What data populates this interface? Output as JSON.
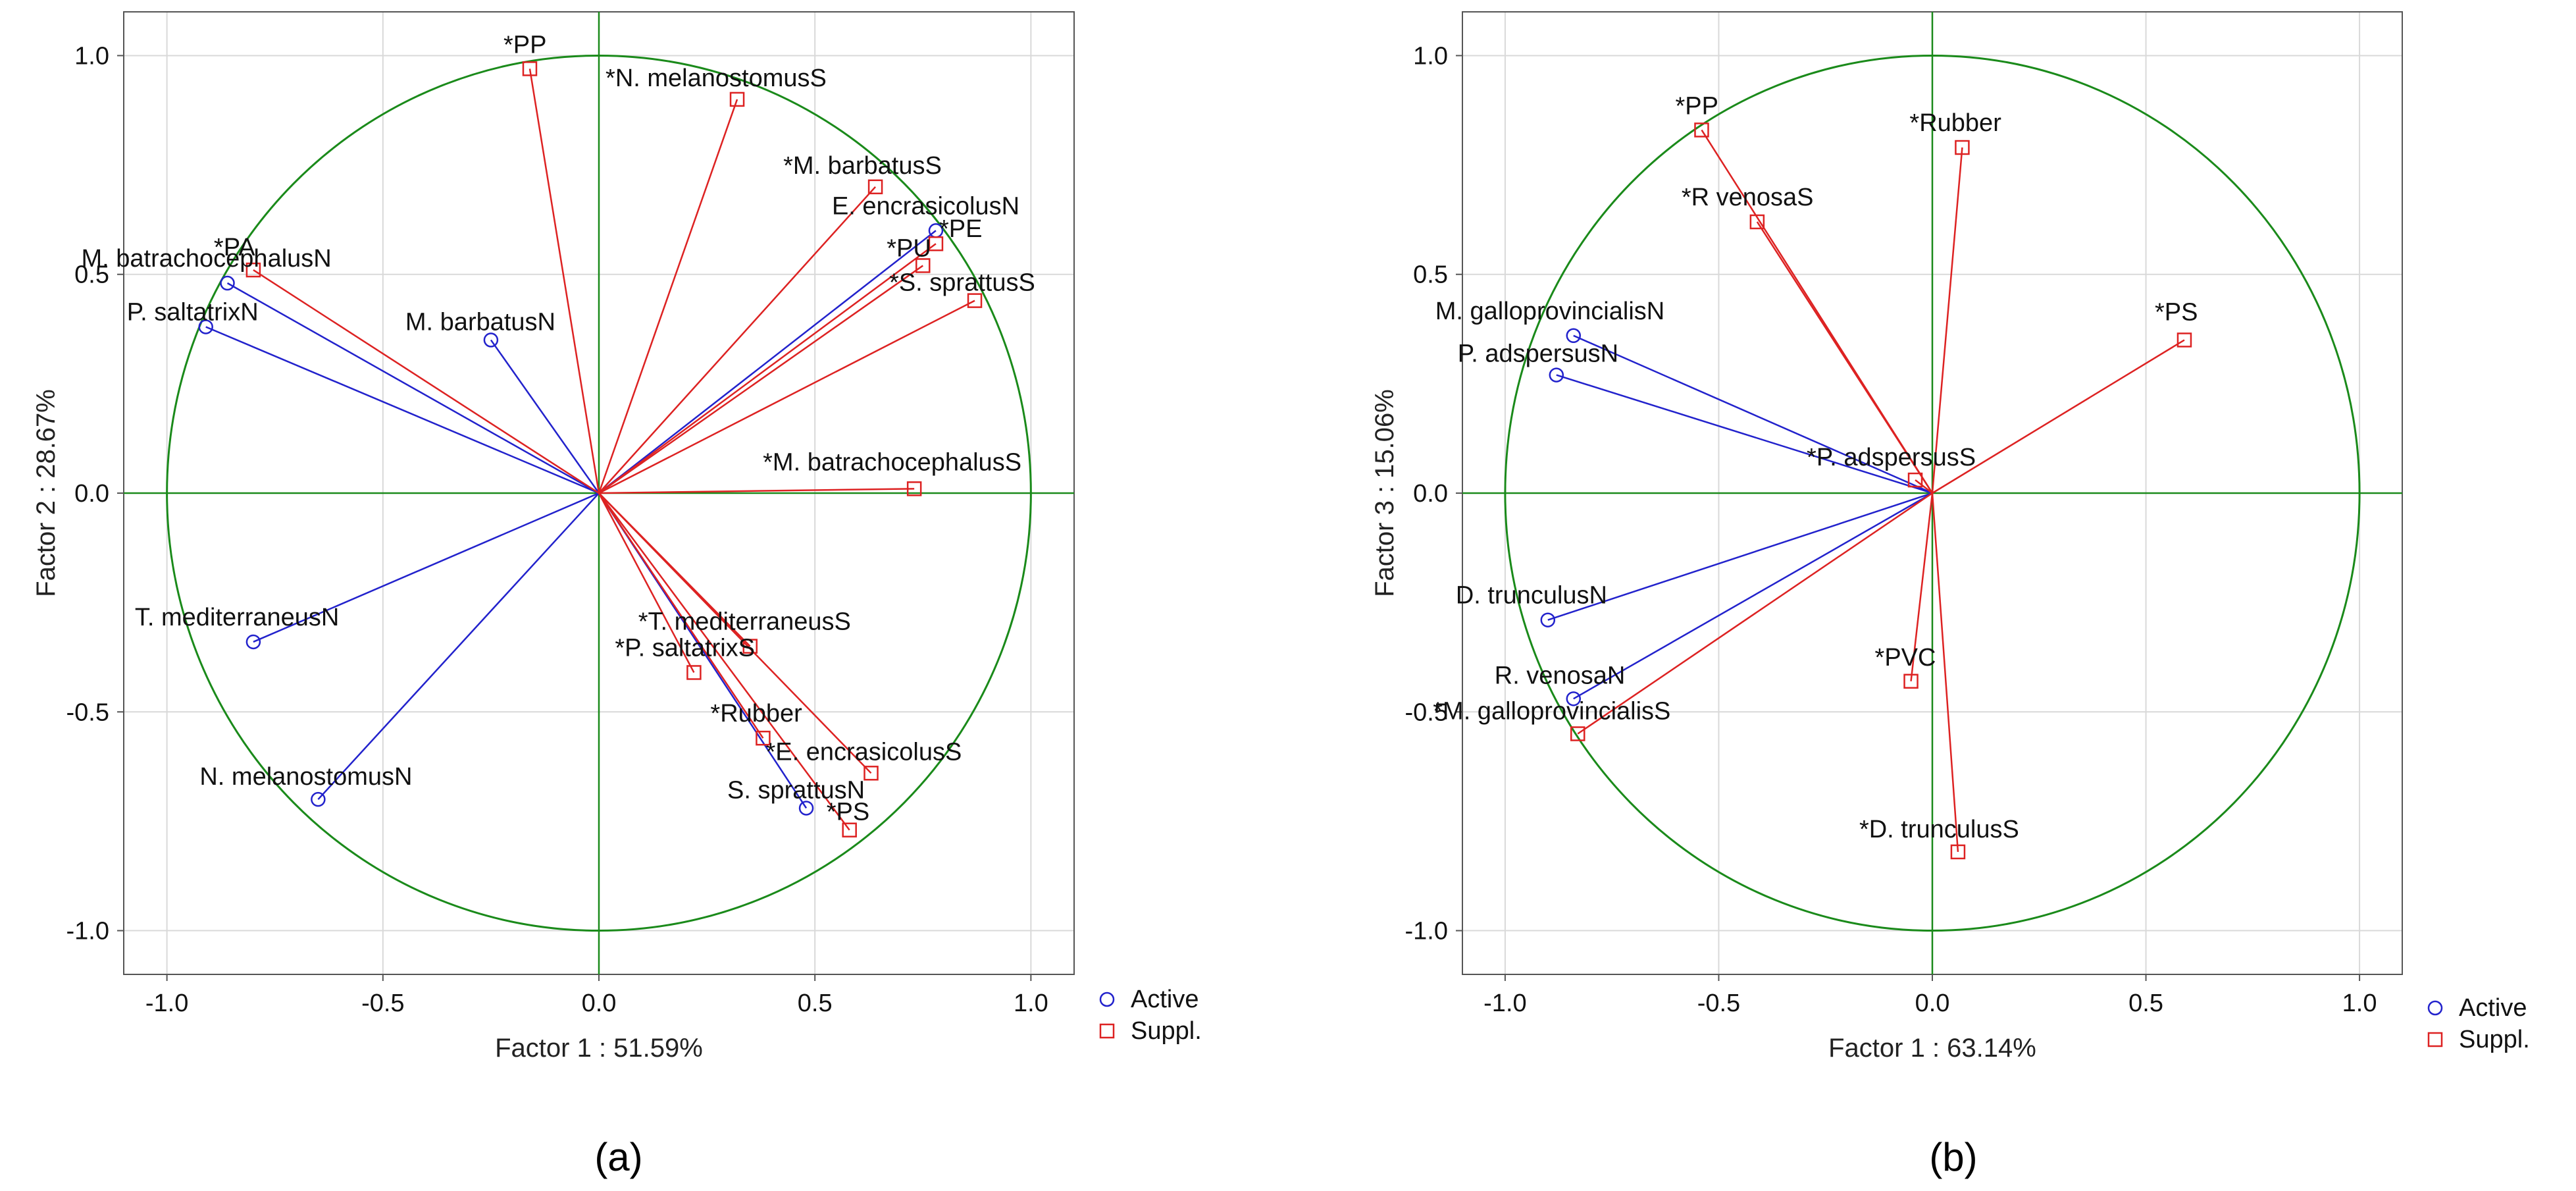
{
  "chart_data": [
    {
      "type": "scatter",
      "panel_label": "(a)",
      "xlabel": "Factor 1 : 51.59%",
      "ylabel": "Factor 2 : 28.67%",
      "xlim": [
        -1.1,
        1.1
      ],
      "ylim": [
        -1.1,
        1.1
      ],
      "xticks": [
        -1.0,
        -0.5,
        0.0,
        0.5,
        1.0
      ],
      "yticks": [
        -1.0,
        -0.5,
        0.0,
        0.5,
        1.0
      ],
      "xtick_labels": [
        "-1.0",
        "-0.5",
        "0.0",
        "0.5",
        "1.0"
      ],
      "ytick_labels": [
        "-1.0",
        "-0.5",
        "0.0",
        "0.5",
        "1.0"
      ],
      "grid": true,
      "unit_circle": true,
      "legend_position": "right",
      "series": [
        {
          "name": "Active",
          "color": "#2222cc",
          "marker": "circle",
          "points": [
            {
              "label": "M. batrachocephalusN",
              "x": -0.86,
              "y": 0.48
            },
            {
              "label": "P. saltatrixN",
              "x": -0.91,
              "y": 0.38
            },
            {
              "label": "M. barbatusN",
              "x": -0.25,
              "y": 0.35
            },
            {
              "label": "E. encrasicolusN",
              "x": 0.78,
              "y": 0.6
            },
            {
              "label": "S. sprattusN",
              "x": 0.48,
              "y": -0.72
            },
            {
              "label": "T. mediterraneusN",
              "x": -0.8,
              "y": -0.34
            },
            {
              "label": "N. melanostomusN",
              "x": -0.65,
              "y": -0.7
            }
          ]
        },
        {
          "name": "Suppl.",
          "color": "#dd2222",
          "marker": "square",
          "points": [
            {
              "label": "*PP",
              "x": -0.16,
              "y": 0.97
            },
            {
              "label": "*N. melanostomusS",
              "x": 0.32,
              "y": 0.9
            },
            {
              "label": "*M. barbatusS",
              "x": 0.64,
              "y": 0.7
            },
            {
              "label": "*PU",
              "x": 0.75,
              "y": 0.52
            },
            {
              "label": "*PE",
              "x": 0.78,
              "y": 0.57
            },
            {
              "label": "*S. sprattusS",
              "x": 0.87,
              "y": 0.44
            },
            {
              "label": "*PA",
              "x": -0.8,
              "y": 0.51
            },
            {
              "label": "*M. batrachocephalusS",
              "x": 0.73,
              "y": 0.01
            },
            {
              "label": "*T. mediterraneusS",
              "x": 0.35,
              "y": -0.35
            },
            {
              "label": "*P. saltatrixS",
              "x": 0.22,
              "y": -0.41
            },
            {
              "label": "*Rubber",
              "x": 0.38,
              "y": -0.56
            },
            {
              "label": "*E. encrasicolusS",
              "x": 0.63,
              "y": -0.64
            },
            {
              "label": "*PS",
              "x": 0.58,
              "y": -0.77
            }
          ]
        }
      ]
    },
    {
      "type": "scatter",
      "panel_label": "(b)",
      "xlabel": "Factor 1 : 63.14%",
      "ylabel": "Factor 3 : 15.06%",
      "xlim": [
        -1.1,
        1.1
      ],
      "ylim": [
        -1.1,
        1.1
      ],
      "xticks": [
        -1.0,
        -0.5,
        0.0,
        0.5,
        1.0
      ],
      "yticks": [
        -1.0,
        -0.5,
        0.0,
        0.5,
        1.0
      ],
      "xtick_labels": [
        "-1.0",
        "-0.5",
        "0.0",
        "0.5",
        "1.0"
      ],
      "ytick_labels": [
        "-1.0",
        "-0.5",
        "0.0",
        "0.5",
        "1.0"
      ],
      "grid": true,
      "unit_circle": true,
      "legend_position": "right",
      "series": [
        {
          "name": "Active",
          "color": "#2222cc",
          "marker": "circle",
          "points": [
            {
              "label": "M. galloprovincialisN",
              "x": -0.84,
              "y": 0.36
            },
            {
              "label": "P. adspersusN",
              "x": -0.88,
              "y": 0.27
            },
            {
              "label": "D. trunculusN",
              "x": -0.9,
              "y": -0.29
            },
            {
              "label": "R. venosaN",
              "x": -0.84,
              "y": -0.47
            }
          ]
        },
        {
          "name": "Suppl.",
          "color": "#dd2222",
          "marker": "square",
          "points": [
            {
              "label": "*PP",
              "x": -0.54,
              "y": 0.83
            },
            {
              "label": "*Rubber",
              "x": 0.07,
              "y": 0.79
            },
            {
              "label": "*R venosaS",
              "x": -0.41,
              "y": 0.62
            },
            {
              "label": "*PS",
              "x": 0.59,
              "y": 0.35
            },
            {
              "label": "*P. adspersusS",
              "x": -0.04,
              "y": 0.03
            },
            {
              "label": "*PVC",
              "x": -0.05,
              "y": -0.43
            },
            {
              "label": "*M. galloprovincialisS",
              "x": -0.83,
              "y": -0.55
            },
            {
              "label": "*D. trunculusS",
              "x": 0.06,
              "y": -0.82
            }
          ]
        }
      ]
    }
  ]
}
